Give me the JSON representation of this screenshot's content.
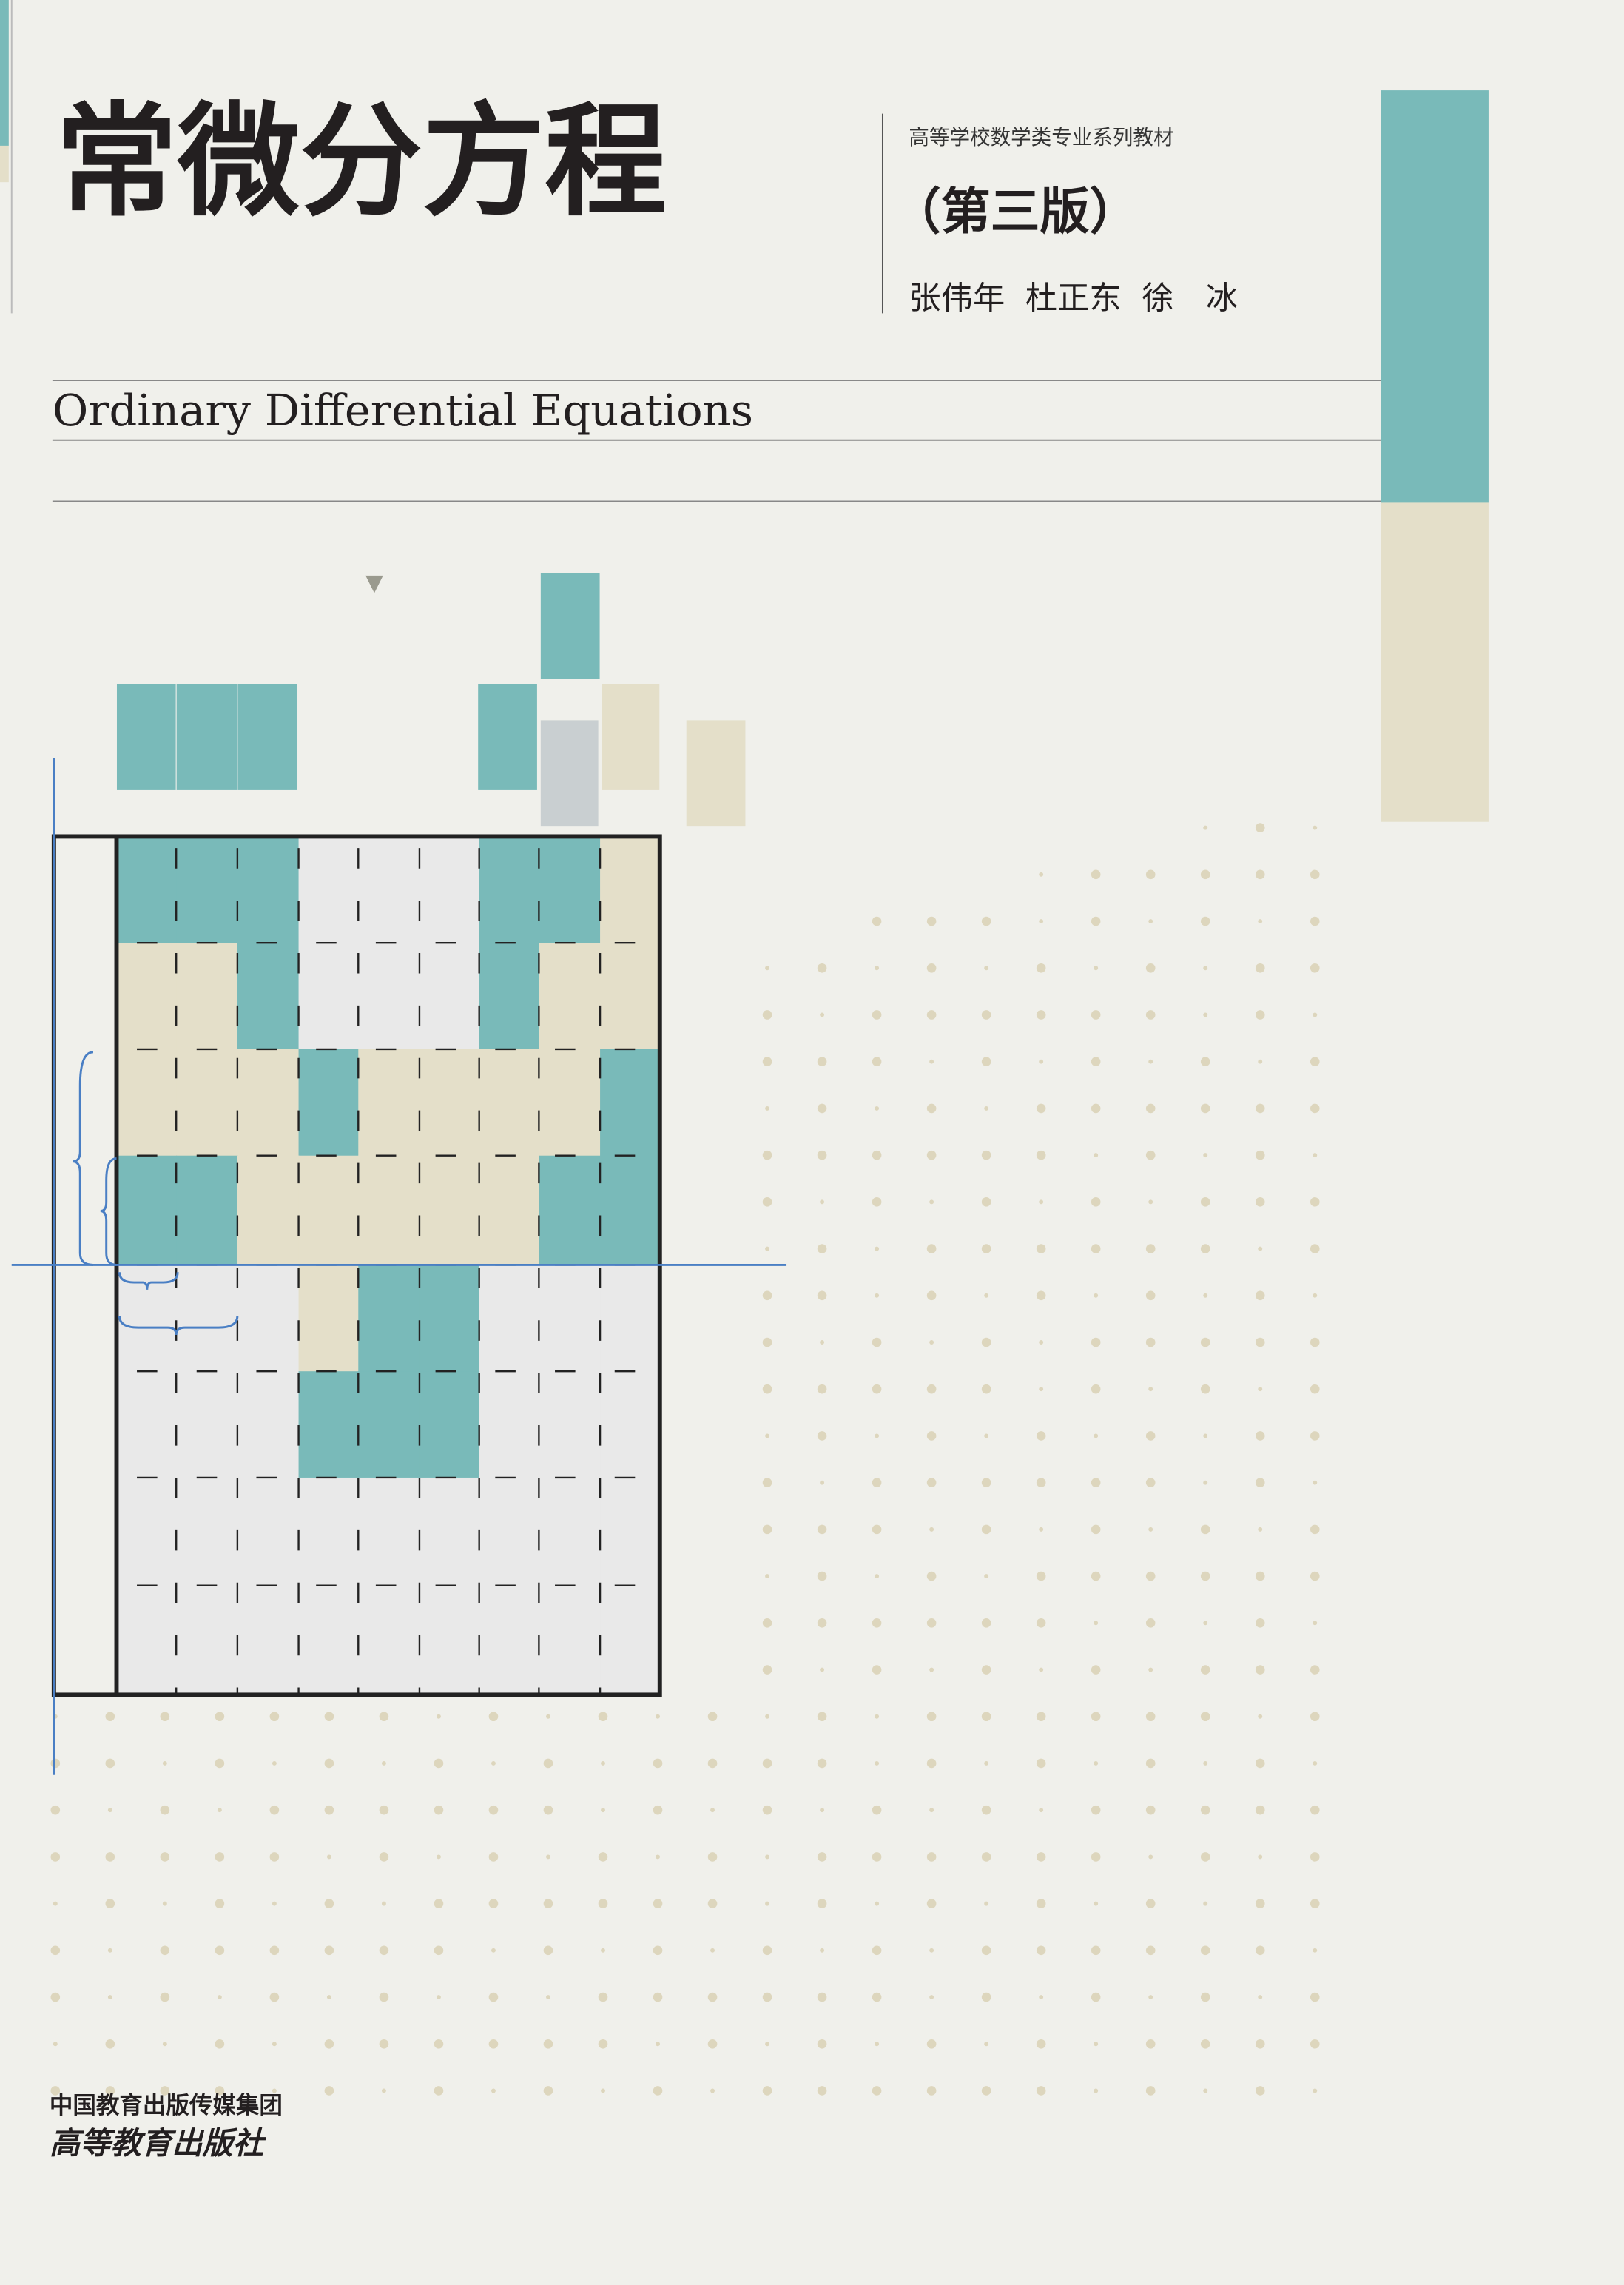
{
  "cover": {
    "title": "常微分方程",
    "series": "高等学校数学类专业系列教材",
    "edition": "（第三版）",
    "authors": "张伟年  杜正东  徐　冰",
    "english_title": "Ordinary Differential Equations",
    "publisher_group": "中国教育出版传媒集团",
    "publisher": "高等教育出版社"
  }
}
